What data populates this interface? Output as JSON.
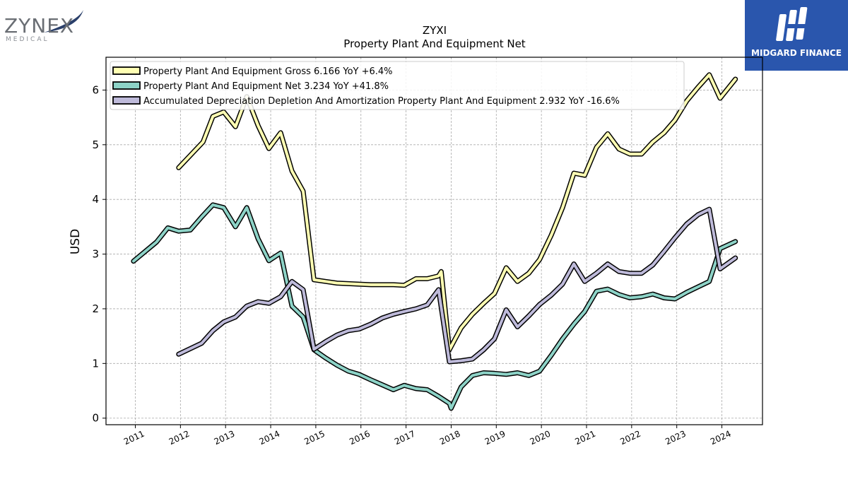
{
  "logos": {
    "left_name": "ZYNEX",
    "left_sub": "MEDICAL",
    "right_name": "MIDGARD FINANCE"
  },
  "chart_data": {
    "type": "line",
    "title": "ZYXI",
    "subtitle": "Property Plant And Equipment Net",
    "xlabel": "",
    "ylabel": "USD",
    "xlim": [
      2010.35,
      2024.9
    ],
    "ylim": [
      -0.12,
      6.6
    ],
    "x_ticks": [
      "2011",
      "2012",
      "2013",
      "2014",
      "2015",
      "2016",
      "2017",
      "2018",
      "2019",
      "2020",
      "2021",
      "2022",
      "2023",
      "2024"
    ],
    "y_ticks": [
      "0",
      "1",
      "2",
      "3",
      "4",
      "5",
      "6"
    ],
    "grid": true,
    "legend_position": "top-left",
    "series": [
      {
        "name": "Property Plant And Equipment Gross  6.166 YoY +6.4%",
        "color": "#ffffb3",
        "points": [
          [
            2011.96,
            4.58
          ],
          [
            2012.5,
            5.05
          ],
          [
            2012.72,
            5.52
          ],
          [
            2012.96,
            5.6
          ],
          [
            2013.22,
            5.33
          ],
          [
            2013.47,
            5.88
          ],
          [
            2013.72,
            5.35
          ],
          [
            2013.96,
            4.93
          ],
          [
            2014.22,
            5.22
          ],
          [
            2014.47,
            4.52
          ],
          [
            2014.72,
            4.15
          ],
          [
            2014.96,
            2.53
          ],
          [
            2015.22,
            2.5
          ],
          [
            2015.47,
            2.47
          ],
          [
            2015.72,
            2.46
          ],
          [
            2015.96,
            2.45
          ],
          [
            2016.22,
            2.44
          ],
          [
            2016.47,
            2.44
          ],
          [
            2016.72,
            2.44
          ],
          [
            2016.96,
            2.43
          ],
          [
            2017.22,
            2.55
          ],
          [
            2017.47,
            2.55
          ],
          [
            2017.72,
            2.6
          ],
          [
            2017.78,
            2.68
          ],
          [
            2017.96,
            1.25
          ],
          [
            2018.22,
            1.65
          ],
          [
            2018.47,
            1.9
          ],
          [
            2018.72,
            2.1
          ],
          [
            2018.96,
            2.28
          ],
          [
            2019.22,
            2.75
          ],
          [
            2019.47,
            2.5
          ],
          [
            2019.72,
            2.65
          ],
          [
            2019.96,
            2.9
          ],
          [
            2020.22,
            3.35
          ],
          [
            2020.47,
            3.85
          ],
          [
            2020.72,
            4.48
          ],
          [
            2020.96,
            4.44
          ],
          [
            2021.22,
            4.95
          ],
          [
            2021.47,
            5.2
          ],
          [
            2021.72,
            4.92
          ],
          [
            2021.96,
            4.83
          ],
          [
            2022.22,
            4.83
          ],
          [
            2022.47,
            5.05
          ],
          [
            2022.72,
            5.22
          ],
          [
            2022.96,
            5.45
          ],
          [
            2023.22,
            5.8
          ],
          [
            2023.47,
            6.05
          ],
          [
            2023.72,
            6.28
          ],
          [
            2023.96,
            5.85
          ],
          [
            2024.3,
            6.2
          ]
        ]
      },
      {
        "name": "Property Plant And Equipment Net  3.234 YoY +41.8%",
        "color": "#8dd3c7",
        "points": [
          [
            2010.96,
            2.87
          ],
          [
            2011.47,
            3.22
          ],
          [
            2011.72,
            3.48
          ],
          [
            2011.96,
            3.42
          ],
          [
            2012.22,
            3.44
          ],
          [
            2012.47,
            3.68
          ],
          [
            2012.72,
            3.9
          ],
          [
            2012.96,
            3.85
          ],
          [
            2013.22,
            3.5
          ],
          [
            2013.47,
            3.85
          ],
          [
            2013.72,
            3.28
          ],
          [
            2013.96,
            2.88
          ],
          [
            2014.22,
            3.02
          ],
          [
            2014.47,
            2.05
          ],
          [
            2014.72,
            1.85
          ],
          [
            2014.96,
            1.25
          ],
          [
            2015.22,
            1.1
          ],
          [
            2015.47,
            0.97
          ],
          [
            2015.72,
            0.86
          ],
          [
            2015.96,
            0.8
          ],
          [
            2016.22,
            0.7
          ],
          [
            2016.47,
            0.61
          ],
          [
            2016.72,
            0.52
          ],
          [
            2016.96,
            0.6
          ],
          [
            2017.22,
            0.54
          ],
          [
            2017.47,
            0.52
          ],
          [
            2017.72,
            0.4
          ],
          [
            2017.96,
            0.27
          ],
          [
            2018.0,
            0.18
          ],
          [
            2018.22,
            0.57
          ],
          [
            2018.47,
            0.78
          ],
          [
            2018.72,
            0.83
          ],
          [
            2018.96,
            0.82
          ],
          [
            2019.22,
            0.8
          ],
          [
            2019.47,
            0.83
          ],
          [
            2019.72,
            0.78
          ],
          [
            2019.96,
            0.86
          ],
          [
            2020.22,
            1.15
          ],
          [
            2020.47,
            1.45
          ],
          [
            2020.72,
            1.72
          ],
          [
            2020.96,
            1.95
          ],
          [
            2021.22,
            2.32
          ],
          [
            2021.47,
            2.36
          ],
          [
            2021.72,
            2.26
          ],
          [
            2021.96,
            2.2
          ],
          [
            2022.22,
            2.22
          ],
          [
            2022.47,
            2.27
          ],
          [
            2022.72,
            2.2
          ],
          [
            2022.96,
            2.18
          ],
          [
            2023.22,
            2.3
          ],
          [
            2023.47,
            2.4
          ],
          [
            2023.72,
            2.5
          ],
          [
            2023.96,
            3.1
          ],
          [
            2024.3,
            3.23
          ]
        ]
      },
      {
        "name": "Accumulated Depreciation Depletion And Amortization Property Plant And Equipment  2.932 YoY -16.6%",
        "color": "#bebada",
        "points": [
          [
            2011.96,
            1.17
          ],
          [
            2012.47,
            1.37
          ],
          [
            2012.72,
            1.6
          ],
          [
            2012.96,
            1.76
          ],
          [
            2013.22,
            1.85
          ],
          [
            2013.47,
            2.05
          ],
          [
            2013.72,
            2.13
          ],
          [
            2013.96,
            2.1
          ],
          [
            2014.22,
            2.22
          ],
          [
            2014.47,
            2.5
          ],
          [
            2014.72,
            2.35
          ],
          [
            2014.96,
            1.26
          ],
          [
            2015.22,
            1.4
          ],
          [
            2015.47,
            1.52
          ],
          [
            2015.72,
            1.6
          ],
          [
            2015.96,
            1.63
          ],
          [
            2016.22,
            1.72
          ],
          [
            2016.47,
            1.83
          ],
          [
            2016.72,
            1.9
          ],
          [
            2016.96,
            1.95
          ],
          [
            2017.22,
            2.0
          ],
          [
            2017.47,
            2.07
          ],
          [
            2017.72,
            2.35
          ],
          [
            2017.96,
            1.03
          ],
          [
            2018.22,
            1.05
          ],
          [
            2018.47,
            1.08
          ],
          [
            2018.72,
            1.25
          ],
          [
            2018.96,
            1.45
          ],
          [
            2019.22,
            1.98
          ],
          [
            2019.47,
            1.67
          ],
          [
            2019.72,
            1.87
          ],
          [
            2019.96,
            2.08
          ],
          [
            2020.22,
            2.25
          ],
          [
            2020.47,
            2.45
          ],
          [
            2020.72,
            2.82
          ],
          [
            2020.96,
            2.5
          ],
          [
            2021.22,
            2.65
          ],
          [
            2021.47,
            2.82
          ],
          [
            2021.72,
            2.68
          ],
          [
            2021.96,
            2.65
          ],
          [
            2022.22,
            2.65
          ],
          [
            2022.47,
            2.8
          ],
          [
            2022.72,
            3.05
          ],
          [
            2022.96,
            3.3
          ],
          [
            2023.22,
            3.55
          ],
          [
            2023.47,
            3.72
          ],
          [
            2023.72,
            3.82
          ],
          [
            2023.96,
            2.73
          ],
          [
            2024.3,
            2.93
          ]
        ]
      }
    ]
  }
}
